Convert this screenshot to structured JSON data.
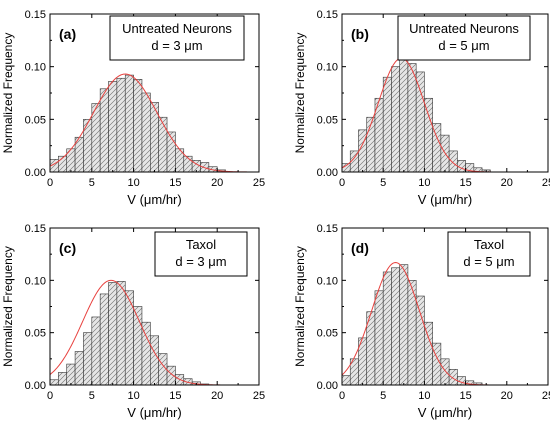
{
  "colors": {
    "bar_fill": "#e6e6e6",
    "bar_hatch": "#6a6a6a",
    "fit_line": "#e8423f",
    "axis": "#000000"
  },
  "chart_data": [
    {
      "type": "bar",
      "panel_label": "(a)",
      "legend_lines": [
        "Untreated Neurons",
        "d = 3 μm"
      ],
      "xlabel": "V (μm/hr)",
      "ylabel": "Normalized Frequency",
      "xlim": [
        0,
        25
      ],
      "ylim": [
        0,
        0.15
      ],
      "xticks": [
        "0",
        "5",
        "10",
        "15",
        "20",
        "25"
      ],
      "yticks": [
        "0.00",
        "0.05",
        "0.10",
        "0.15"
      ],
      "bin_width": 1,
      "x": [
        0,
        1,
        2,
        3,
        4,
        5,
        6,
        7,
        8,
        9,
        10,
        11,
        12,
        13,
        14,
        15,
        16,
        17,
        18,
        19,
        20
      ],
      "values": [
        0.012,
        0.015,
        0.022,
        0.033,
        0.05,
        0.065,
        0.079,
        0.086,
        0.089,
        0.092,
        0.088,
        0.075,
        0.066,
        0.052,
        0.038,
        0.022,
        0.015,
        0.011,
        0.009,
        0.005,
        0.002
      ],
      "fit": {
        "type": "gaussian",
        "amplitude": 0.093,
        "mean": 9.0,
        "sigma": 3.8
      }
    },
    {
      "type": "bar",
      "panel_label": "(b)",
      "legend_lines": [
        "Untreated Neurons",
        "d = 5 μm"
      ],
      "xlabel": "V (μm/hr)",
      "ylabel": "Normalized Frequency",
      "xlim": [
        0,
        25
      ],
      "ylim": [
        0,
        0.15
      ],
      "xticks": [
        "0",
        "5",
        "10",
        "15",
        "20",
        "25"
      ],
      "yticks": [
        "0.00",
        "0.05",
        "0.10",
        "0.15"
      ],
      "bin_width": 1,
      "x": [
        0,
        1,
        2,
        3,
        4,
        5,
        6,
        7,
        8,
        9,
        10,
        11,
        12,
        13,
        14,
        15,
        16,
        17
      ],
      "values": [
        0.008,
        0.02,
        0.04,
        0.052,
        0.07,
        0.09,
        0.1,
        0.108,
        0.103,
        0.095,
        0.07,
        0.046,
        0.035,
        0.02,
        0.011,
        0.008,
        0.004,
        0.002
      ],
      "fit": {
        "type": "gaussian",
        "amplitude": 0.108,
        "mean": 7.2,
        "sigma": 2.8
      }
    },
    {
      "type": "bar",
      "panel_label": "(c)",
      "legend_lines": [
        "Taxol",
        "d = 3 μm"
      ],
      "xlabel": "V (μm/hr)",
      "ylabel": "Normalized Frequency",
      "xlim": [
        0,
        25
      ],
      "ylim": [
        0,
        0.15
      ],
      "xticks": [
        "0",
        "5",
        "10",
        "15",
        "20",
        "25"
      ],
      "yticks": [
        "0.00",
        "0.05",
        "0.10",
        "0.15"
      ],
      "bin_width": 1,
      "x": [
        0,
        1,
        2,
        3,
        4,
        5,
        6,
        7,
        8,
        9,
        10,
        11,
        12,
        13,
        14,
        15,
        16,
        17,
        18
      ],
      "values": [
        0.005,
        0.012,
        0.02,
        0.032,
        0.05,
        0.065,
        0.087,
        0.098,
        0.099,
        0.09,
        0.075,
        0.06,
        0.047,
        0.03,
        0.018,
        0.01,
        0.006,
        0.003,
        0.001
      ],
      "fit": {
        "type": "gaussian",
        "amplitude": 0.1,
        "mean": 7.3,
        "sigma": 3.4
      }
    },
    {
      "type": "bar",
      "panel_label": "(d)",
      "legend_lines": [
        "Taxol",
        "d = 5 μm"
      ],
      "xlabel": "V (μm/hr)",
      "ylabel": "Normalized Frequency",
      "xlim": [
        0,
        25
      ],
      "ylim": [
        0,
        0.15
      ],
      "xticks": [
        "0",
        "5",
        "10",
        "15",
        "20",
        "25"
      ],
      "yticks": [
        "0.00",
        "0.05",
        "0.10",
        "0.15"
      ],
      "bin_width": 1,
      "x": [
        0,
        1,
        2,
        3,
        4,
        5,
        6,
        7,
        8,
        9,
        10,
        11,
        12,
        13,
        14,
        15,
        16
      ],
      "values": [
        0.009,
        0.025,
        0.045,
        0.07,
        0.09,
        0.108,
        0.112,
        0.115,
        0.1,
        0.085,
        0.06,
        0.04,
        0.025,
        0.015,
        0.008,
        0.004,
        0.002
      ],
      "fit": {
        "type": "gaussian",
        "amplitude": 0.117,
        "mean": 6.5,
        "sigma": 2.9
      }
    }
  ]
}
